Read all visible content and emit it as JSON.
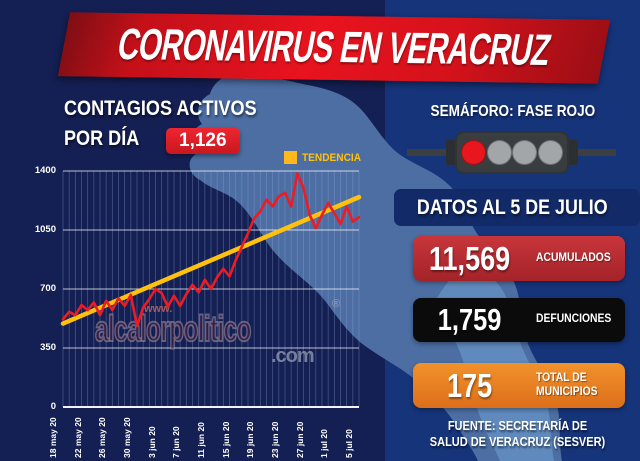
{
  "header": {
    "title": "CORONAVIRUS EN VERACRUZ"
  },
  "chart_section": {
    "heading_line1": "CONTAGIOS ACTIVOS",
    "heading_line2": "POR DÍA",
    "current_value": "1,126",
    "legend_label": "TENDENCIA"
  },
  "chart_data": {
    "type": "line",
    "title": "CONTAGIOS ACTIVOS POR DÍA",
    "x_tick_labels": [
      "18 may 20",
      "22 may 20",
      "26 may 20",
      "30 may 20",
      "3 jun 20",
      "7 jun 20",
      "11 jun 20",
      "15 jun 20",
      "19 jun 20",
      "23 jun 20",
      "27 jun 20",
      "1 jul 20",
      "5 jul 20"
    ],
    "x_tick_interval_days": 4,
    "y_ticks": [
      0,
      350,
      700,
      1050,
      1400
    ],
    "ylim": [
      0,
      1400
    ],
    "grid": true,
    "legend_position": "top-right",
    "series": [
      {
        "name": "Contagios activos por día",
        "color": "#EC1C24",
        "values": [
          520,
          565,
          545,
          605,
          575,
          620,
          545,
          630,
          575,
          645,
          600,
          665,
          480,
          590,
          640,
          700,
          675,
          595,
          660,
          600,
          670,
          725,
          680,
          755,
          700,
          770,
          820,
          775,
          870,
          950,
          1030,
          1120,
          1160,
          1230,
          1190,
          1250,
          1270,
          1190,
          1386,
          1300,
          1140,
          1060,
          1140,
          1210,
          1150,
          1085,
          1190,
          1100,
          1126
        ]
      },
      {
        "name": "Tendencia",
        "color": "#FFC10E",
        "type": "trend",
        "start_value": 495,
        "end_value": 1245
      }
    ]
  },
  "watermark": {
    "prefix": "www.",
    "name": "alcalorpolitico",
    "registered": "®",
    "suffix": ".com"
  },
  "right_panel": {
    "semaforo_label": "SEMÁFORO: FASE ROJO",
    "traffic_light": {
      "lights": [
        {
          "color": "#E8161E",
          "state": "on",
          "name": "red"
        },
        {
          "color": "#A2A6A8",
          "state": "off",
          "name": "gray"
        },
        {
          "color": "#A2A6A8",
          "state": "off",
          "name": "gray"
        },
        {
          "color": "#A2A6A8",
          "state": "off",
          "name": "gray"
        }
      ]
    },
    "data_date_label": "DATOS AL 5 DE JULIO",
    "stats": [
      {
        "value": "11,569",
        "label_lines": [
          "ACUMULADOS"
        ],
        "bg": "#B52F34"
      },
      {
        "value": "1,759",
        "label_lines": [
          "DEFUNCIONES"
        ],
        "bg": "#0B0B0C"
      },
      {
        "value": "175",
        "label_lines": [
          "TOTAL DE",
          "MUNICIPIOS"
        ],
        "bg": "#E87D1F"
      }
    ],
    "source_line1": "FUENTE: SECRETARÍA DE",
    "source_line2": "SALUD DE VERACRUZ (SESVER)"
  },
  "colors": {
    "background_left": "#141F53",
    "background_right": "#16347A",
    "map_fill": "#4C6EA3",
    "map_light_fill": "#6089BD",
    "banner_red": "#E8131F",
    "data_line_red": "#EC1C24",
    "trend_yellow": "#FFC10E"
  }
}
